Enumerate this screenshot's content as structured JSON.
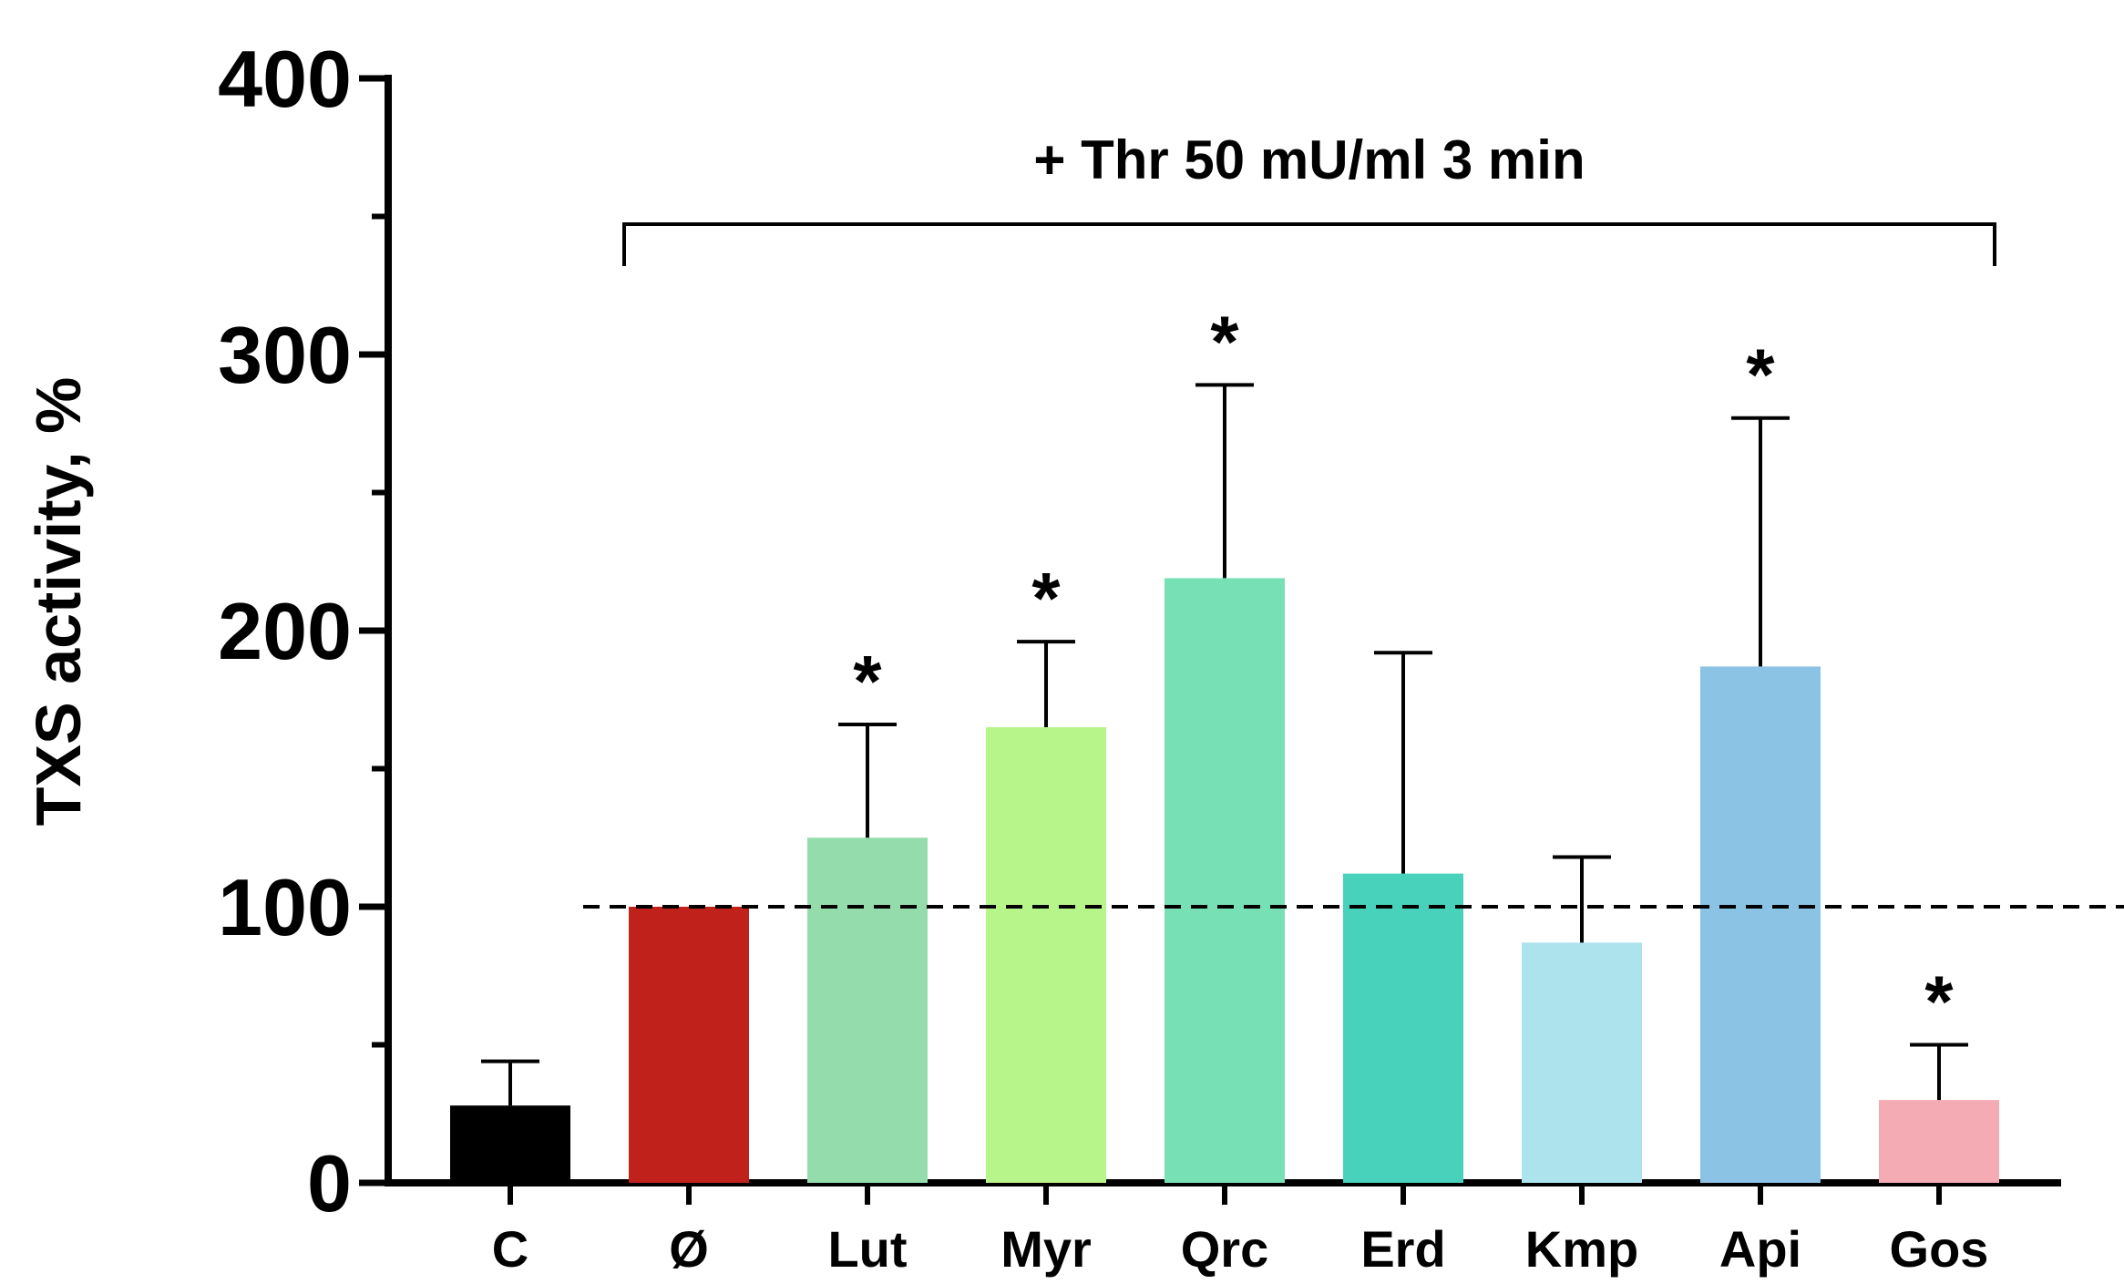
{
  "chart_data": {
    "type": "bar",
    "title": "",
    "xlabel": "",
    "ylabel": "TXS activity, %",
    "ylim": [
      0,
      400
    ],
    "yticks": [
      0,
      100,
      200,
      300,
      400
    ],
    "y_minor_step": 50,
    "grid": false,
    "legend": "none",
    "categories": [
      "C",
      "Ø",
      "Lut",
      "Myr",
      "Qrc",
      "Erd",
      "Kmp",
      "Api",
      "Gos"
    ],
    "values": [
      28,
      100,
      125,
      165,
      219,
      112,
      87,
      187,
      30
    ],
    "error_upper": [
      44,
      100,
      166,
      196,
      289,
      192,
      118,
      277,
      50
    ],
    "colors": [
      "#000000",
      "#c0221b",
      "#94dcac",
      "#b7f58a",
      "#77e0b4",
      "#48d1bb",
      "#ace3ed",
      "#8ac3e4",
      "#f4abb4"
    ],
    "significance": [
      "",
      "",
      "*",
      "*",
      "*",
      "",
      "",
      "*",
      "*"
    ],
    "reference_line": {
      "value": 100,
      "style": "dashed"
    },
    "annotation": {
      "text": "+ Thr 50 mU/ml 3 min",
      "span": [
        "Ø",
        "Gos"
      ]
    }
  }
}
